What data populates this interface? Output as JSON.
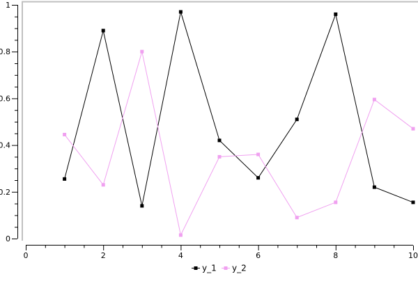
{
  "figure": {
    "background": "#ffffff",
    "frame_color": "#c0c0c0"
  },
  "chart_data": {
    "type": "line",
    "title": "",
    "xlabel": "",
    "ylabel": "",
    "grid": false,
    "x": [
      1,
      2,
      3,
      4,
      5,
      6,
      7,
      8,
      9,
      10
    ],
    "series": [
      {
        "name": "y_1",
        "color": "#000000",
        "marker": "filled-square",
        "values": [
          0.255,
          0.89,
          0.14,
          0.97,
          0.42,
          0.26,
          0.51,
          0.96,
          0.22,
          0.155
        ]
      },
      {
        "name": "y_2",
        "color": "#f0a0f0",
        "marker": "filled-square",
        "values": [
          0.445,
          0.23,
          0.8,
          0.015,
          0.35,
          0.36,
          0.09,
          0.155,
          0.595,
          0.47
        ]
      }
    ],
    "xlim": [
      0,
      10
    ],
    "ylim": [
      0,
      1
    ],
    "x_major_ticks": [
      0,
      2,
      4,
      6,
      8,
      10
    ],
    "x_tick_labels": [
      "0",
      "2",
      "4",
      "6",
      "8",
      "10"
    ],
    "x_minor_step": 0.5,
    "y_major_ticks": [
      0,
      0.2,
      0.4,
      0.6,
      0.8,
      1
    ],
    "y_tick_labels": [
      "0",
      "0.2",
      "0.4",
      "0.6",
      "0.8",
      "1"
    ],
    "y_minor_step": 0.05,
    "legend_position": "bottom-center"
  }
}
